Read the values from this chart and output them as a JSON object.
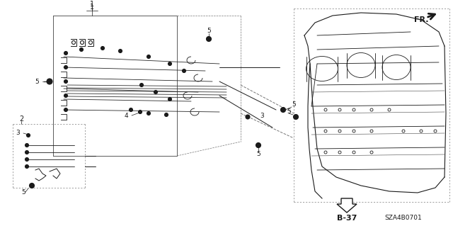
{
  "bg_color": "#ffffff",
  "fig_width": 6.4,
  "fig_height": 3.19,
  "dpi": 100,
  "part_number": "SZA4B0701",
  "page_ref": "B-37",
  "fr_label": "FR.",
  "label_color": "#000000",
  "gray": "#888888"
}
